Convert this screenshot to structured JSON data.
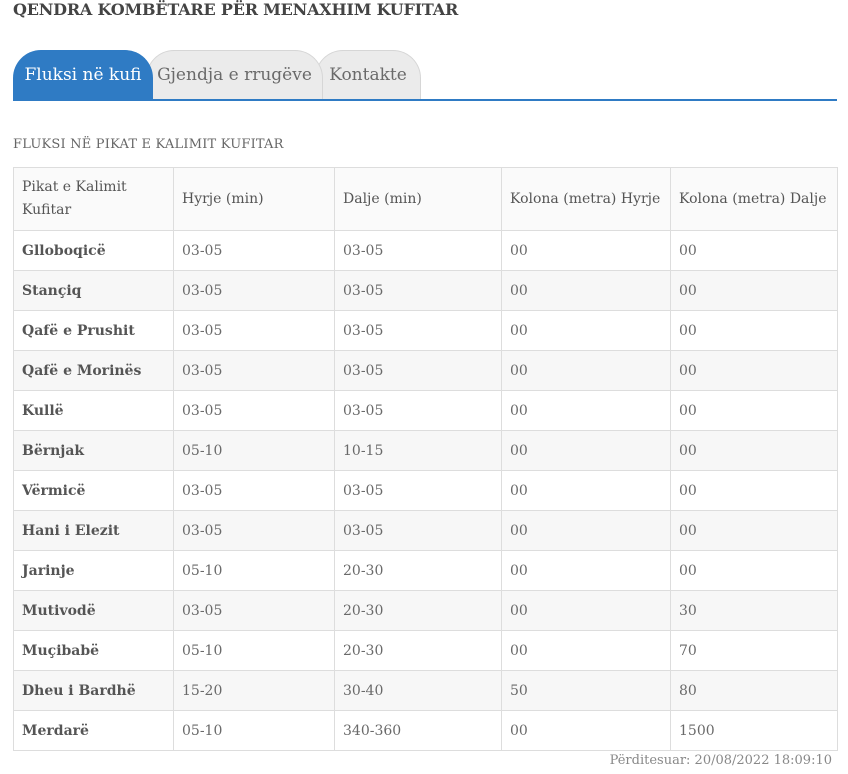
{
  "header": {
    "title": "QENDRA KOMBËTARE PËR MENAXHIM KUFITAR"
  },
  "tabs": [
    {
      "label": "Fluksi në kufi",
      "active": true
    },
    {
      "label": "Gjendja e rrugëve",
      "active": false
    },
    {
      "label": "Kontakte",
      "active": false
    }
  ],
  "colors": {
    "accent": "#2f7bc4"
  },
  "section": {
    "title": "FLUKSI NË PIKAT E KALIMIT KUFITAR"
  },
  "table": {
    "headers": [
      "Pikat e Kalimit Kufitar",
      "Hyrje (min)",
      "Dalje (min)",
      "Kolona (metra) Hyrje",
      "Kolona (metra) Dalje"
    ],
    "rows": [
      [
        "Glloboqicë",
        "03-05",
        "03-05",
        "00",
        "00"
      ],
      [
        "Stançiq",
        "03-05",
        "03-05",
        "00",
        "00"
      ],
      [
        "Qafë e Prushit",
        "03-05",
        "03-05",
        "00",
        "00"
      ],
      [
        "Qafë e Morinës",
        "03-05",
        "03-05",
        "00",
        "00"
      ],
      [
        "Kullë",
        "03-05",
        "03-05",
        "00",
        "00"
      ],
      [
        "Bërnjak",
        "05-10",
        "10-15",
        "00",
        "00"
      ],
      [
        "Vërmicë",
        "03-05",
        "03-05",
        "00",
        "00"
      ],
      [
        "Hani i Elezit",
        "03-05",
        "03-05",
        "00",
        "00"
      ],
      [
        "Jarinje",
        "05-10",
        "20-30",
        "00",
        "00"
      ],
      [
        "Mutivodë",
        "03-05",
        "20-30",
        "00",
        "30"
      ],
      [
        "Muçibabë",
        "05-10",
        "20-30",
        "00",
        "70"
      ],
      [
        "Dheu i Bardhë",
        "15-20",
        "30-40",
        "50",
        "80"
      ],
      [
        "Merdarë",
        "05-10",
        "340-360",
        "00",
        "1500"
      ]
    ]
  },
  "footer": {
    "updated": "Përditesuar: 20/08/2022 18:09:10"
  }
}
